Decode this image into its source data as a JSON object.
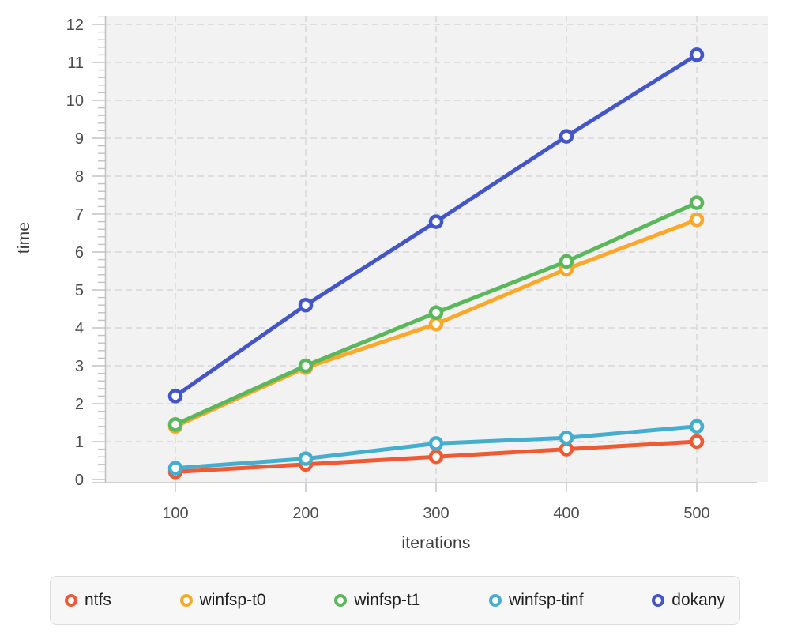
{
  "chart_data": {
    "type": "line",
    "title": "",
    "xlabel": "iterations",
    "ylabel": "time",
    "x": [
      100,
      200,
      300,
      400,
      500
    ],
    "series": [
      {
        "name": "ntfs",
        "color": "#EE5A34",
        "values": [
          0.2,
          0.4,
          0.6,
          0.8,
          1.0
        ]
      },
      {
        "name": "winfsp-t0",
        "color": "#FFA726",
        "values": [
          1.4,
          2.95,
          4.1,
          5.55,
          6.85
        ]
      },
      {
        "name": "winfsp-t1",
        "color": "#5BB75B",
        "values": [
          1.45,
          3.0,
          4.4,
          5.75,
          7.3
        ]
      },
      {
        "name": "winfsp-tinf",
        "color": "#45AECE",
        "values": [
          0.3,
          0.55,
          0.95,
          1.1,
          1.4
        ]
      },
      {
        "name": "dokany",
        "color": "#4355C8",
        "values": [
          2.2,
          4.6,
          6.8,
          9.05,
          11.2
        ]
      }
    ],
    "x_ticks": [
      100,
      200,
      300,
      400,
      500
    ],
    "y_ticks": [
      0,
      1,
      2,
      3,
      4,
      5,
      6,
      7,
      8,
      9,
      10,
      11,
      12
    ],
    "y_minor_step": 0.2,
    "xlim": [
      46,
      554
    ],
    "ylim": [
      0,
      12.25
    ],
    "grid": true,
    "grid_style": "dashed",
    "legend_position": "bottom",
    "marker": "open-circle",
    "colors": {
      "plot_bg": "#F2F2F2",
      "grid": "#DBDBDB",
      "axis": "#C2C2C2",
      "tick_label": "#4C4C4C",
      "axis_title": "#3C3C3C",
      "legend_bg": "#F7F7F7",
      "legend_border": "#DCDCDC",
      "legend_text": "#1F1F1F"
    }
  }
}
